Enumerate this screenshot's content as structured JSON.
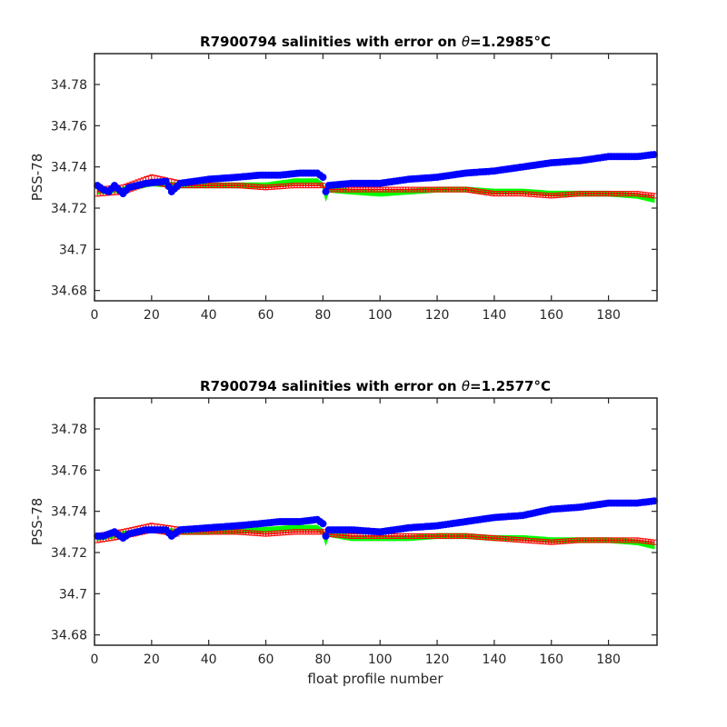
{
  "chart_data": [
    {
      "type": "scatter",
      "title_prefix": "R7900794 salinities with error on ",
      "title_symbol": "θ",
      "title_value": "=1.2985",
      "title_unit": "°C",
      "xlabel": "",
      "ylabel": "PSS-78",
      "xlim": [
        0,
        197
      ],
      "ylim": [
        34.675,
        34.795
      ],
      "xticks": [
        0,
        20,
        40,
        60,
        80,
        100,
        120,
        140,
        160,
        180
      ],
      "yticks": [
        34.68,
        34.7,
        34.72,
        34.74,
        34.76,
        34.78
      ],
      "ytick_labels": [
        "34.68",
        "34.7",
        "34.72",
        "34.74",
        "34.76",
        "34.78"
      ],
      "colors": {
        "raw": "#0000ff",
        "calibrated": "#ff0000",
        "mapped_band": "#00ff00"
      },
      "series": [
        {
          "role": "raw",
          "anchors": [
            [
              1,
              34.731
            ],
            [
              3,
              34.729
            ],
            [
              5,
              34.728
            ],
            [
              7,
              34.731
            ],
            [
              10,
              34.727
            ],
            [
              12,
              34.73
            ],
            [
              15,
              34.731
            ],
            [
              18,
              34.732
            ],
            [
              25,
              34.733
            ],
            [
              27,
              34.728
            ],
            [
              30,
              34.732
            ],
            [
              40,
              34.734
            ],
            [
              50,
              34.735
            ],
            [
              58,
              34.736
            ],
            [
              65,
              34.736
            ],
            [
              72,
              34.737
            ],
            [
              78,
              34.737
            ],
            [
              80,
              34.735
            ],
            [
              81,
              34.728
            ],
            [
              82,
              34.731
            ],
            [
              90,
              34.732
            ],
            [
              100,
              34.732
            ],
            [
              110,
              34.734
            ],
            [
              120,
              34.735
            ],
            [
              130,
              34.737
            ],
            [
              140,
              34.738
            ],
            [
              150,
              34.74
            ],
            [
              160,
              34.742
            ],
            [
              170,
              34.743
            ],
            [
              180,
              34.745
            ],
            [
              190,
              34.745
            ],
            [
              196,
              34.746
            ]
          ]
        },
        {
          "role": "calibrated",
          "anchors": [
            [
              1,
              34.728
            ],
            [
              10,
              34.729
            ],
            [
              20,
              34.734
            ],
            [
              30,
              34.731
            ],
            [
              40,
              34.731
            ],
            [
              50,
              34.731
            ],
            [
              60,
              34.73
            ],
            [
              70,
              34.731
            ],
            [
              80,
              34.731
            ],
            [
              81,
              34.729
            ],
            [
              90,
              34.729
            ],
            [
              100,
              34.729
            ],
            [
              110,
              34.729
            ],
            [
              120,
              34.729
            ],
            [
              130,
              34.729
            ],
            [
              140,
              34.727
            ],
            [
              150,
              34.727
            ],
            [
              160,
              34.726
            ],
            [
              170,
              34.727
            ],
            [
              180,
              34.727
            ],
            [
              190,
              34.727
            ],
            [
              196,
              34.726
            ]
          ]
        },
        {
          "role": "mapped_band",
          "anchors": [
            [
              1,
              34.728
            ],
            [
              10,
              34.729
            ],
            [
              20,
              34.732
            ],
            [
              30,
              34.731
            ],
            [
              40,
              34.731
            ],
            [
              60,
              34.731
            ],
            [
              70,
              34.733
            ],
            [
              78,
              34.733
            ],
            [
              80,
              34.731
            ],
            [
              81,
              34.725
            ],
            [
              82,
              34.729
            ],
            [
              90,
              34.728
            ],
            [
              100,
              34.727
            ],
            [
              110,
              34.728
            ],
            [
              120,
              34.729
            ],
            [
              130,
              34.729
            ],
            [
              140,
              34.728
            ],
            [
              150,
              34.728
            ],
            [
              160,
              34.727
            ],
            [
              170,
              34.727
            ],
            [
              180,
              34.727
            ],
            [
              190,
              34.726
            ],
            [
              196,
              34.724
            ]
          ]
        }
      ]
    },
    {
      "type": "scatter",
      "title_prefix": "R7900794 salinities with error on ",
      "title_symbol": "θ",
      "title_value": "=1.2577",
      "title_unit": "°C",
      "xlabel": "float profile number",
      "ylabel": "PSS-78",
      "xlim": [
        0,
        197
      ],
      "ylim": [
        34.675,
        34.795
      ],
      "xticks": [
        0,
        20,
        40,
        60,
        80,
        100,
        120,
        140,
        160,
        180
      ],
      "yticks": [
        34.68,
        34.7,
        34.72,
        34.74,
        34.76,
        34.78
      ],
      "ytick_labels": [
        "34.68",
        "34.7",
        "34.72",
        "34.74",
        "34.76",
        "34.78"
      ],
      "colors": {
        "raw": "#0000ff",
        "calibrated": "#ff0000",
        "mapped_band": "#00ff00"
      },
      "series": [
        {
          "role": "raw",
          "anchors": [
            [
              1,
              34.728
            ],
            [
              3,
              34.728
            ],
            [
              5,
              34.729
            ],
            [
              7,
              34.73
            ],
            [
              10,
              34.727
            ],
            [
              12,
              34.729
            ],
            [
              15,
              34.73
            ],
            [
              18,
              34.731
            ],
            [
              25,
              34.731
            ],
            [
              27,
              34.728
            ],
            [
              30,
              34.731
            ],
            [
              40,
              34.732
            ],
            [
              50,
              34.733
            ],
            [
              58,
              34.734
            ],
            [
              65,
              34.735
            ],
            [
              72,
              34.735
            ],
            [
              78,
              34.736
            ],
            [
              80,
              34.734
            ],
            [
              81,
              34.728
            ],
            [
              82,
              34.731
            ],
            [
              90,
              34.731
            ],
            [
              100,
              34.73
            ],
            [
              110,
              34.732
            ],
            [
              120,
              34.733
            ],
            [
              130,
              34.735
            ],
            [
              140,
              34.737
            ],
            [
              150,
              34.738
            ],
            [
              160,
              34.741
            ],
            [
              170,
              34.742
            ],
            [
              180,
              34.744
            ],
            [
              190,
              34.744
            ],
            [
              196,
              34.745
            ]
          ]
        },
        {
          "role": "calibrated",
          "anchors": [
            [
              1,
              34.727
            ],
            [
              10,
              34.729
            ],
            [
              20,
              34.732
            ],
            [
              30,
              34.73
            ],
            [
              40,
              34.73
            ],
            [
              50,
              34.73
            ],
            [
              60,
              34.729
            ],
            [
              70,
              34.73
            ],
            [
              80,
              34.73
            ],
            [
              81,
              34.729
            ],
            [
              90,
              34.728
            ],
            [
              100,
              34.728
            ],
            [
              110,
              34.728
            ],
            [
              120,
              34.728
            ],
            [
              130,
              34.728
            ],
            [
              140,
              34.727
            ],
            [
              150,
              34.726
            ],
            [
              160,
              34.725
            ],
            [
              170,
              34.726
            ],
            [
              180,
              34.726
            ],
            [
              190,
              34.726
            ],
            [
              196,
              34.725
            ]
          ]
        },
        {
          "role": "mapped_band",
          "anchors": [
            [
              1,
              34.727
            ],
            [
              10,
              34.729
            ],
            [
              20,
              34.731
            ],
            [
              30,
              34.73
            ],
            [
              40,
              34.73
            ],
            [
              60,
              34.731
            ],
            [
              70,
              34.732
            ],
            [
              78,
              34.732
            ],
            [
              80,
              34.73
            ],
            [
              81,
              34.725
            ],
            [
              82,
              34.729
            ],
            [
              90,
              34.727
            ],
            [
              100,
              34.727
            ],
            [
              110,
              34.727
            ],
            [
              120,
              34.728
            ],
            [
              130,
              34.728
            ],
            [
              140,
              34.727
            ],
            [
              150,
              34.727
            ],
            [
              160,
              34.726
            ],
            [
              170,
              34.726
            ],
            [
              180,
              34.726
            ],
            [
              190,
              34.725
            ],
            [
              196,
              34.723
            ]
          ]
        }
      ]
    }
  ]
}
